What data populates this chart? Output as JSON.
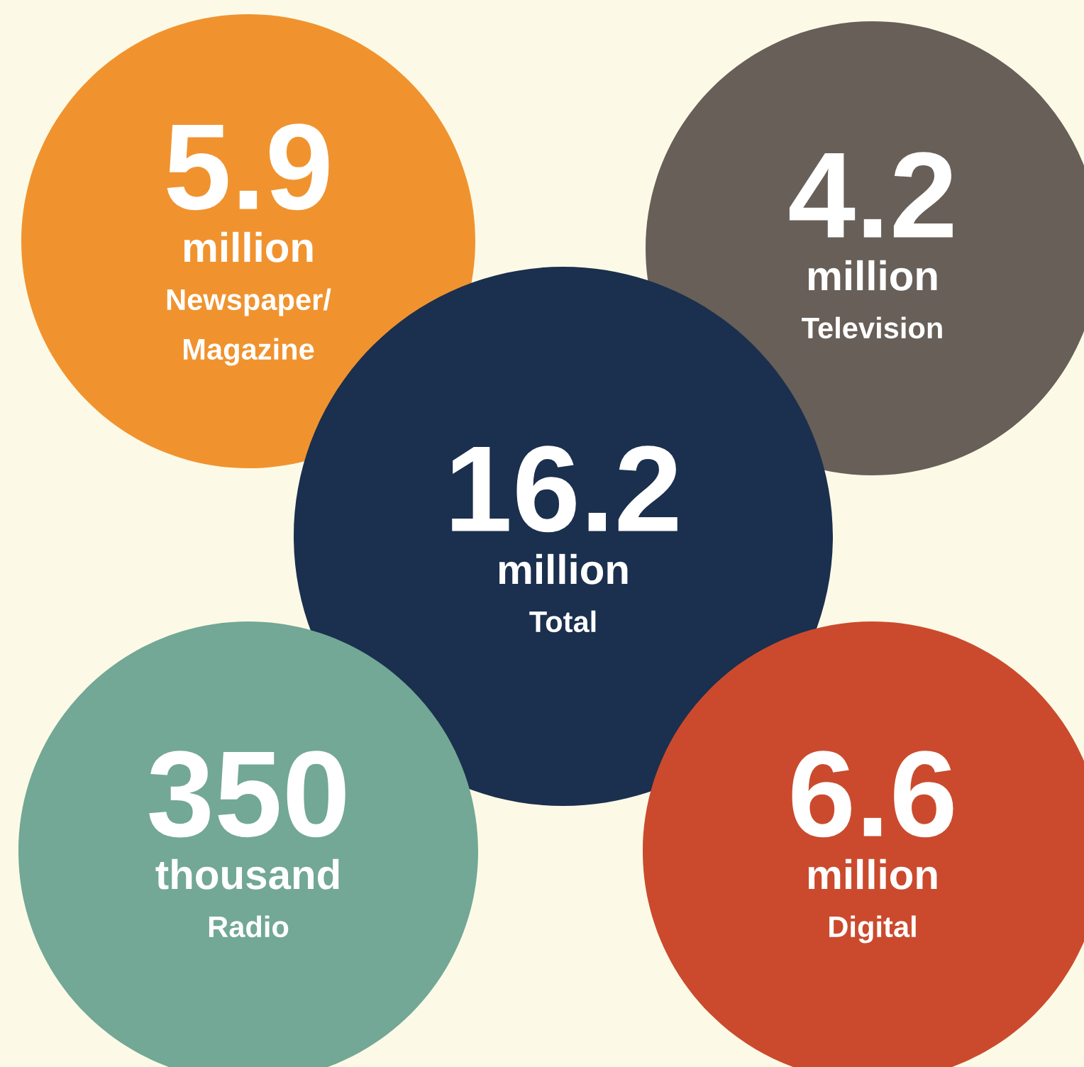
{
  "chart_data": {
    "type": "other",
    "categories": [
      "Newspaper/\nMagazine",
      "Television",
      "Total",
      "Radio",
      "Digital"
    ],
    "values": [
      5.9,
      4.2,
      16.2,
      350,
      6.6
    ],
    "data_labels": true,
    "annotations": [
      "million",
      "million",
      "million",
      "thousand",
      "million"
    ],
    "colors": [
      "#f0932f",
      "#675f58",
      "#1b2f4e",
      "#72a895",
      "#cb4a2d"
    ]
  }
}
